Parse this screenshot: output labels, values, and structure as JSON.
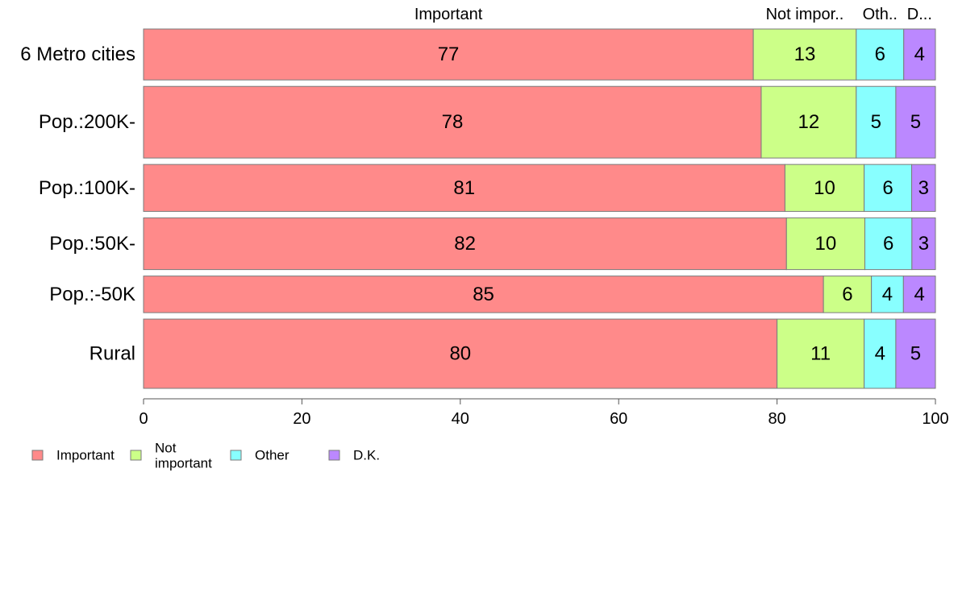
{
  "chart_data": {
    "type": "bar",
    "orientation": "horizontal",
    "stacked": true,
    "categories": [
      "6 Metro cities",
      "Pop.:200K-",
      "Pop.:100K-",
      "Pop.:50K-",
      "Pop.:-50K",
      "Rural"
    ],
    "series": [
      {
        "name": "Important",
        "color": "#ff8a8a",
        "values": [
          77,
          78,
          81,
          82,
          85,
          80
        ]
      },
      {
        "name": "Not important",
        "color": "#ccff88",
        "values": [
          13,
          12,
          10,
          10,
          6,
          11
        ]
      },
      {
        "name": "Other",
        "color": "#88ffff",
        "values": [
          6,
          5,
          6,
          6,
          4,
          4
        ]
      },
      {
        "name": "D.K.",
        "color": "#bb88ff",
        "values": [
          4,
          5,
          3,
          3,
          4,
          5
        ]
      }
    ],
    "row_weights": [
      64,
      90,
      59,
      65,
      46,
      87
    ],
    "top_labels": [
      "Important",
      "Not impor..",
      "Oth..",
      "D..."
    ],
    "xlim": [
      0,
      100
    ],
    "xticks": [
      0,
      20,
      40,
      60,
      80,
      100
    ],
    "legend": {
      "position": "bottom-left",
      "labels": [
        "Important",
        "Not\nimportant",
        "Other",
        "D.K."
      ]
    },
    "grid": false,
    "title": "",
    "xlabel": "",
    "ylabel": ""
  }
}
